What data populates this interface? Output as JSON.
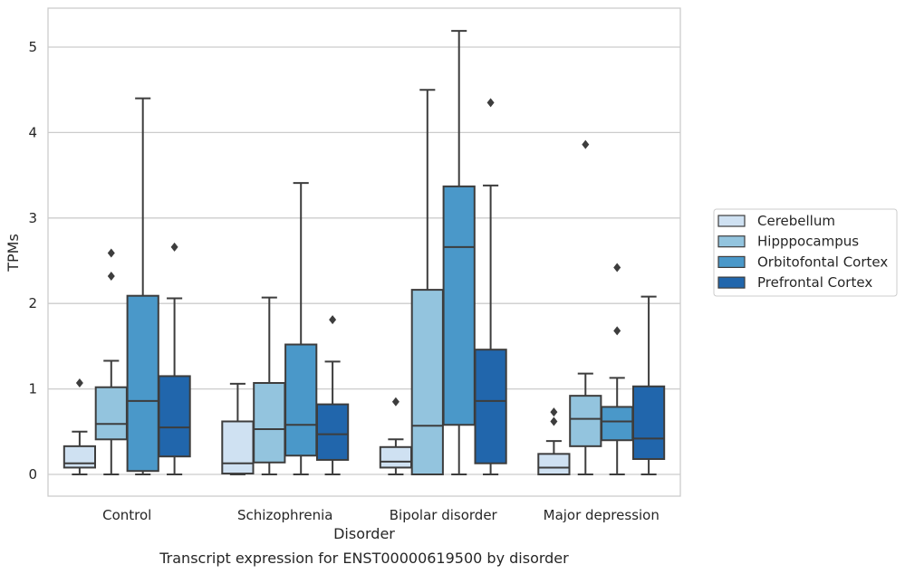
{
  "chart_data": {
    "type": "boxplot",
    "title": "Transcript expression for ENST00000619500 by disorder",
    "xlabel": "Disorder",
    "ylabel": "TPMs",
    "ylim": [
      -0.25,
      5.45
    ],
    "yticks": [
      0,
      1,
      2,
      3,
      4,
      5
    ],
    "grid": "horizontal",
    "legend_position": "right",
    "categories": [
      "Control",
      "Schizophrenia",
      "Bipolar disorder",
      "Major depression"
    ],
    "series": [
      {
        "name": "Cerebellum",
        "color": "#cfe1f2",
        "boxes": [
          {
            "whislo": 0.0,
            "q1": 0.08,
            "med": 0.13,
            "q3": 0.33,
            "whishi": 0.5,
            "fliers": [
              1.07
            ]
          },
          {
            "whislo": 0.0,
            "q1": 0.01,
            "med": 0.13,
            "q3": 0.62,
            "whishi": 1.06,
            "fliers": []
          },
          {
            "whislo": 0.0,
            "q1": 0.08,
            "med": 0.15,
            "q3": 0.32,
            "whishi": 0.41,
            "fliers": [
              0.85
            ]
          },
          {
            "whislo": 0.0,
            "q1": 0.0,
            "med": 0.08,
            "q3": 0.24,
            "whishi": 0.39,
            "fliers": [
              0.62,
              0.73
            ]
          }
        ]
      },
      {
        "name": "Hipppocampus",
        "color": "#93c4de",
        "boxes": [
          {
            "whislo": 0.0,
            "q1": 0.41,
            "med": 0.59,
            "q3": 1.02,
            "whishi": 1.33,
            "fliers": [
              2.32,
              2.59
            ]
          },
          {
            "whislo": 0.0,
            "q1": 0.14,
            "med": 0.53,
            "q3": 1.07,
            "whishi": 2.07,
            "fliers": []
          },
          {
            "whislo": 0.0,
            "q1": 0.0,
            "med": 0.57,
            "q3": 2.16,
            "whishi": 4.5,
            "fliers": []
          },
          {
            "whislo": 0.0,
            "q1": 0.33,
            "med": 0.65,
            "q3": 0.92,
            "whishi": 1.18,
            "fliers": [
              3.86
            ]
          }
        ]
      },
      {
        "name": "Orbitofontal Cortex",
        "color": "#4a98c9",
        "boxes": [
          {
            "whislo": 0.0,
            "q1": 0.04,
            "med": 0.86,
            "q3": 2.09,
            "whishi": 4.4,
            "fliers": []
          },
          {
            "whislo": 0.0,
            "q1": 0.22,
            "med": 0.58,
            "q3": 1.52,
            "whishi": 3.41,
            "fliers": []
          },
          {
            "whislo": 0.0,
            "q1": 0.58,
            "med": 2.66,
            "q3": 3.37,
            "whishi": 5.19,
            "fliers": []
          },
          {
            "whislo": 0.0,
            "q1": 0.4,
            "med": 0.62,
            "q3": 0.79,
            "whishi": 1.13,
            "fliers": [
              1.68,
              2.42
            ]
          }
        ]
      },
      {
        "name": "Prefrontal Cortex",
        "color": "#2166ac",
        "boxes": [
          {
            "whislo": 0.0,
            "q1": 0.21,
            "med": 0.55,
            "q3": 1.15,
            "whishi": 2.06,
            "fliers": [
              2.66
            ]
          },
          {
            "whislo": 0.0,
            "q1": 0.17,
            "med": 0.47,
            "q3": 0.82,
            "whishi": 1.32,
            "fliers": [
              1.81
            ]
          },
          {
            "whislo": 0.0,
            "q1": 0.13,
            "med": 0.86,
            "q3": 1.46,
            "whishi": 3.38,
            "fliers": [
              4.35
            ]
          },
          {
            "whislo": 0.0,
            "q1": 0.18,
            "med": 0.42,
            "q3": 1.03,
            "whishi": 2.08,
            "fliers": []
          }
        ]
      }
    ]
  }
}
